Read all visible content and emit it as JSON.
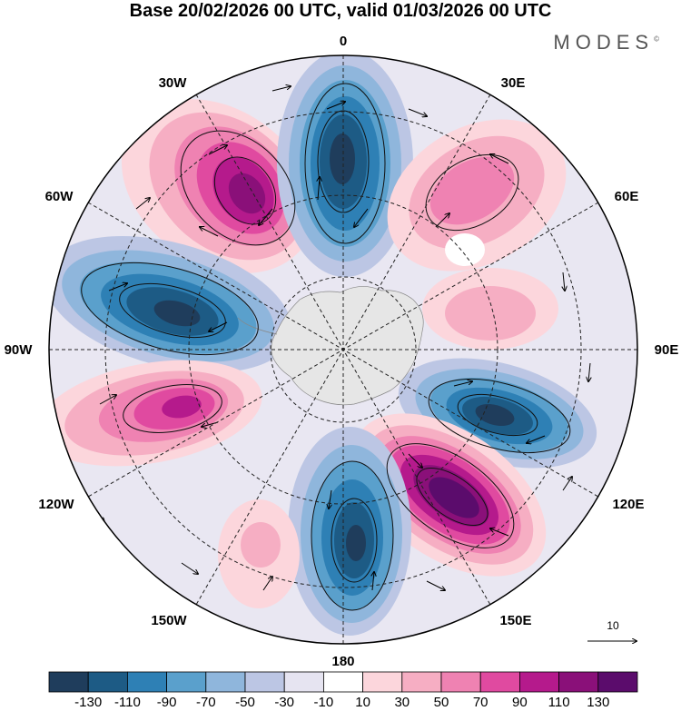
{
  "header": {
    "title": "Base 20/02/2026 00 UTC, valid 01/03/2026 00 UTC",
    "brand": "MODES",
    "brand_mark": "©"
  },
  "map": {
    "projection": "south-polar-stereographic",
    "longitude_labels": [
      "0",
      "30E",
      "60E",
      "90E",
      "120E",
      "150E",
      "180",
      "150W",
      "120W",
      "90W",
      "60W",
      "30W"
    ],
    "vector_reference_label": "10",
    "colorbar": {
      "colors": [
        "#1f3d5c",
        "#1d5b85",
        "#2e80b5",
        "#5aa0cc",
        "#8fb6dc",
        "#bcc6e4",
        "#e6e4f1",
        "#ffffff",
        "#fcd6dc",
        "#f6aec3",
        "#ef82b2",
        "#e04aa0",
        "#b51a8c",
        "#8a1079",
        "#5b0c6c"
      ],
      "labels": [
        "-130",
        "-110",
        "-90",
        "-70",
        "-50",
        "-30",
        "-10",
        "10",
        "30",
        "50",
        "70",
        "90",
        "110",
        "130"
      ]
    }
  }
}
